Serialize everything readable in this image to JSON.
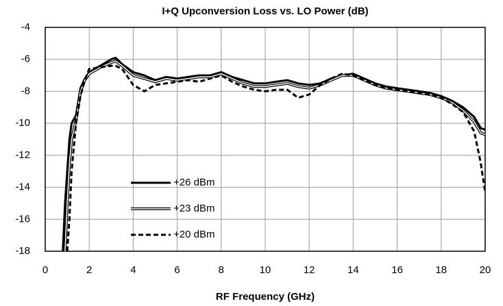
{
  "chart_data": {
    "type": "line",
    "title": "I+Q Upconversion Loss vs. LO Power (dB)",
    "x_label": "RF Frequency (GHz)",
    "x": [
      0.8,
      0.9,
      1.0,
      1.1,
      1.2,
      1.4,
      1.6,
      1.8,
      2.0,
      2.5,
      3.0,
      3.2,
      3.5,
      4.0,
      4.5,
      5.0,
      5.5,
      6.0,
      6.5,
      7.0,
      7.5,
      8.0,
      8.5,
      9.0,
      9.5,
      10,
      10.5,
      11,
      11.5,
      12,
      12.5,
      13,
      13.5,
      14,
      14.5,
      15,
      15.5,
      16,
      16.5,
      17,
      17.5,
      18,
      18.5,
      19,
      19.5,
      19.8,
      20
    ],
    "series": [
      {
        "name": "+26 dBm",
        "color": "#000000",
        "style": "solid",
        "values": [
          -18,
          -15,
          -13,
          -11,
          -10,
          -9.5,
          -7.8,
          -7.2,
          -6.8,
          -6.4,
          -6.0,
          -5.9,
          -6.3,
          -6.8,
          -7.0,
          -7.3,
          -7.1,
          -7.2,
          -7.1,
          -7.0,
          -7.0,
          -6.8,
          -7.1,
          -7.3,
          -7.5,
          -7.5,
          -7.4,
          -7.3,
          -7.5,
          -7.6,
          -7.5,
          -7.2,
          -7.0,
          -6.9,
          -7.2,
          -7.5,
          -7.7,
          -7.8,
          -7.9,
          -8.0,
          -8.1,
          -8.3,
          -8.6,
          -9.0,
          -9.6,
          -10.3,
          -10.4
        ]
      },
      {
        "name": "+23 dBm",
        "color": "#000000",
        "style": "double",
        "values": [
          null,
          -18,
          -15,
          -12.5,
          -11,
          -9.8,
          -8.0,
          -7.3,
          -6.9,
          -6.5,
          -6.2,
          -6.1,
          -6.4,
          -7.0,
          -7.2,
          -7.4,
          -7.2,
          -7.3,
          -7.2,
          -7.1,
          -7.1,
          -6.9,
          -7.2,
          -7.5,
          -7.7,
          -7.7,
          -7.6,
          -7.5,
          -7.7,
          -7.8,
          -7.6,
          -7.3,
          -7.0,
          -7.0,
          -7.3,
          -7.6,
          -7.8,
          -7.9,
          -8.0,
          -8.1,
          -8.2,
          -8.4,
          -8.7,
          -9.2,
          -9.9,
          -10.6,
          -10.7
        ]
      },
      {
        "name": "+20 dBm",
        "color": "#000000",
        "style": "dashed",
        "values": [
          null,
          null,
          -18,
          -16,
          -13,
          -10,
          -8.3,
          -7.3,
          -6.6,
          -6.5,
          -6.4,
          -6.4,
          -6.6,
          -7.6,
          -8.0,
          -7.6,
          -7.5,
          -7.4,
          -7.3,
          -7.4,
          -7.2,
          -7.0,
          -7.4,
          -7.7,
          -7.9,
          -8.0,
          -7.9,
          -7.9,
          -8.4,
          -8.2,
          -7.6,
          -7.2,
          -6.9,
          -7.0,
          -7.3,
          -7.6,
          -7.8,
          -7.9,
          -8.0,
          -8.1,
          -8.2,
          -8.4,
          -8.8,
          -9.3,
          -10.5,
          -12.5,
          -14.3
        ]
      }
    ],
    "xlim": [
      0,
      20
    ],
    "xticks": [
      0,
      2,
      4,
      6,
      8,
      10,
      12,
      14,
      16,
      18,
      20
    ],
    "ylim": [
      -18,
      -4
    ],
    "yticks": [
      -18,
      -16,
      -14,
      -12,
      -10,
      -8,
      -6,
      -4
    ],
    "grid": true,
    "legend": "lower left"
  }
}
